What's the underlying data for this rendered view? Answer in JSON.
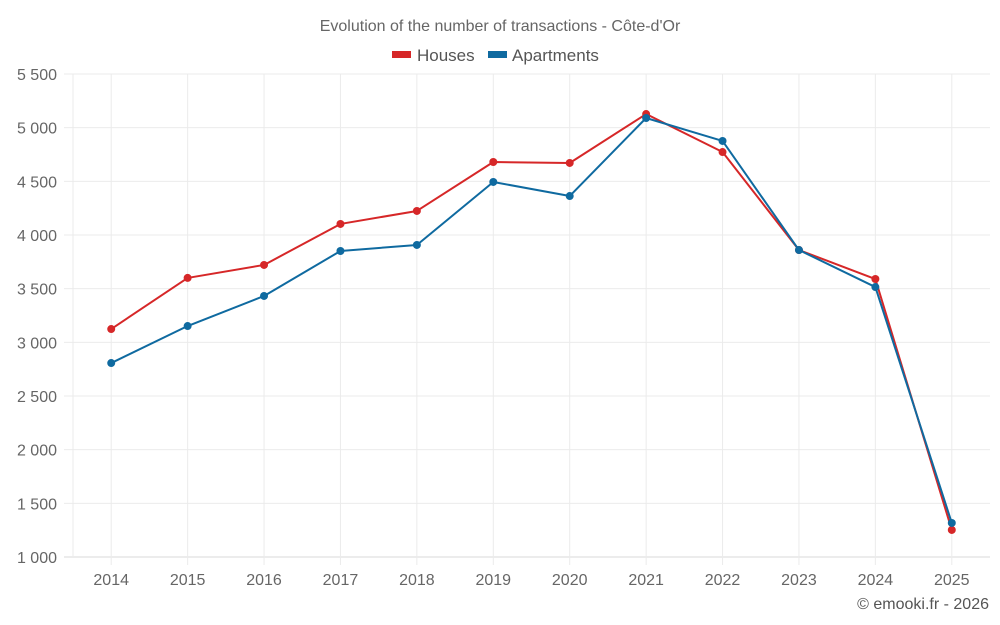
{
  "chart_data": {
    "type": "line",
    "title": "Evolution of the number of transactions - Côte-d'Or",
    "xlabel": "",
    "ylabel": "",
    "categories": [
      "2014",
      "2015",
      "2016",
      "2017",
      "2018",
      "2019",
      "2020",
      "2021",
      "2022",
      "2023",
      "2024",
      "2025"
    ],
    "series": [
      {
        "name": "Houses",
        "color": "#d62728",
        "values": [
          3124,
          3600,
          3721,
          4103,
          4224,
          4680,
          4671,
          5127,
          4773,
          3860,
          3590,
          1252
        ]
      },
      {
        "name": "Apartments",
        "color": "#0f6aa0",
        "values": [
          2807,
          3152,
          3432,
          3851,
          3907,
          4494,
          4363,
          5090,
          4876,
          3860,
          3515,
          1317
        ]
      }
    ],
    "ylim": [
      1000,
      5500
    ],
    "yticks": [
      1000,
      1500,
      2000,
      2500,
      3000,
      3500,
      4000,
      4500,
      5000,
      5500
    ],
    "ytick_labels": [
      "1 000",
      "1 500",
      "2 000",
      "2 500",
      "3 000",
      "3 500",
      "4 000",
      "4 500",
      "5 000",
      "5 500"
    ],
    "grid": true,
    "legend_position": "top-center"
  },
  "credit": "© emooki.fr - 2026"
}
